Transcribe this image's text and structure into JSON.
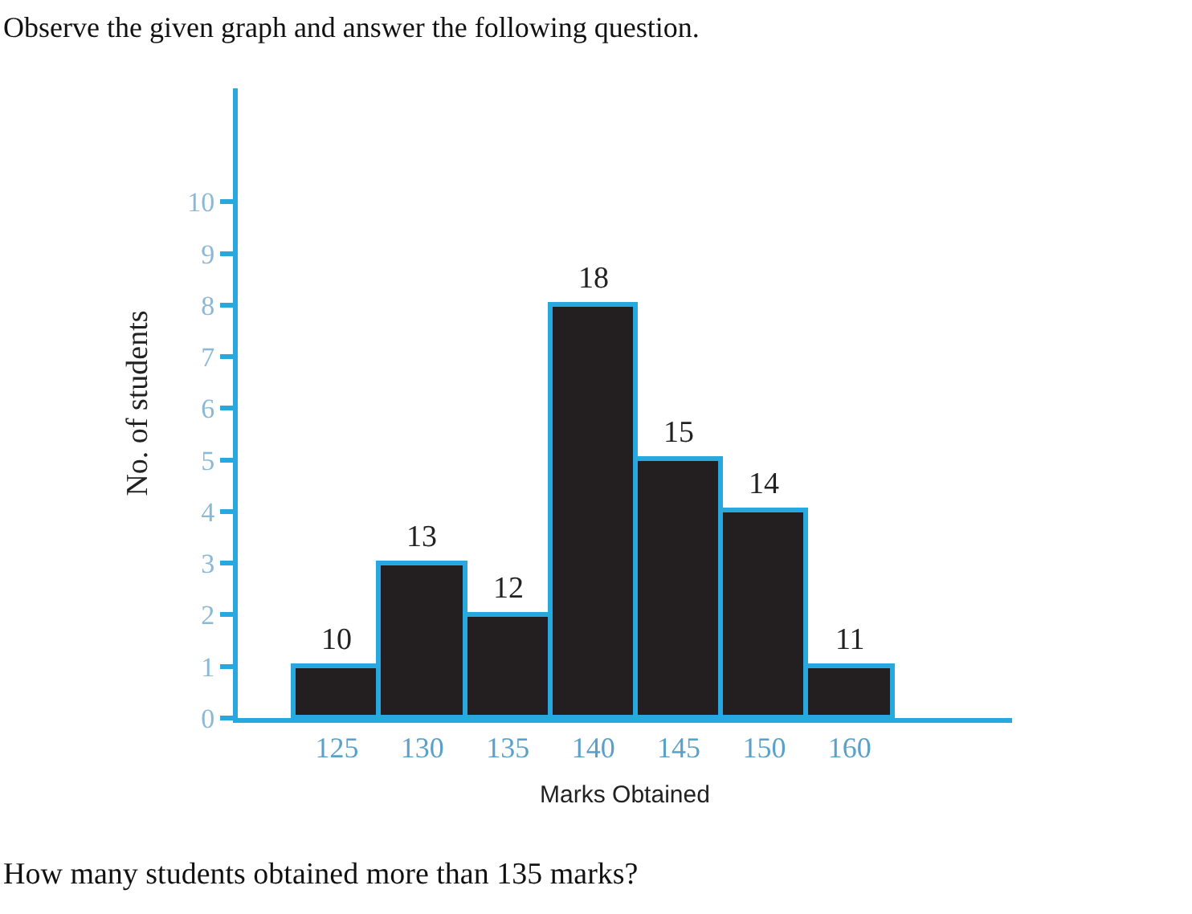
{
  "chart_data": {
    "type": "bar",
    "title": "Observe the given graph and answer the following question.",
    "annotations": [
      "How many students obtained more than 135 marks?",
      {
        "text": "10",
        "x": "125",
        "y": 1
      },
      {
        "text": "13",
        "x": "130",
        "y": 3
      },
      {
        "text": "12",
        "x": "135",
        "y": 2
      },
      {
        "text": "18",
        "x": "140",
        "y": 8
      },
      {
        "text": "15",
        "x": "145",
        "y": 5
      },
      {
        "text": "14",
        "x": "150",
        "y": 4
      },
      {
        "text": "11",
        "x": "160",
        "y": 1
      }
    ],
    "xlabel": "Marks Obtained",
    "ylabel": "No. of students",
    "categories": [
      "125",
      "130",
      "135",
      "140",
      "145",
      "150",
      "160"
    ],
    "values": [
      1,
      3,
      2,
      8,
      5,
      4,
      1
    ],
    "color": "#231f20",
    "ylim": [
      0,
      12.2
    ],
    "yticks": [
      0,
      1,
      2,
      3,
      4,
      5,
      6,
      7,
      8,
      9,
      10
    ],
    "legend": false
  }
}
